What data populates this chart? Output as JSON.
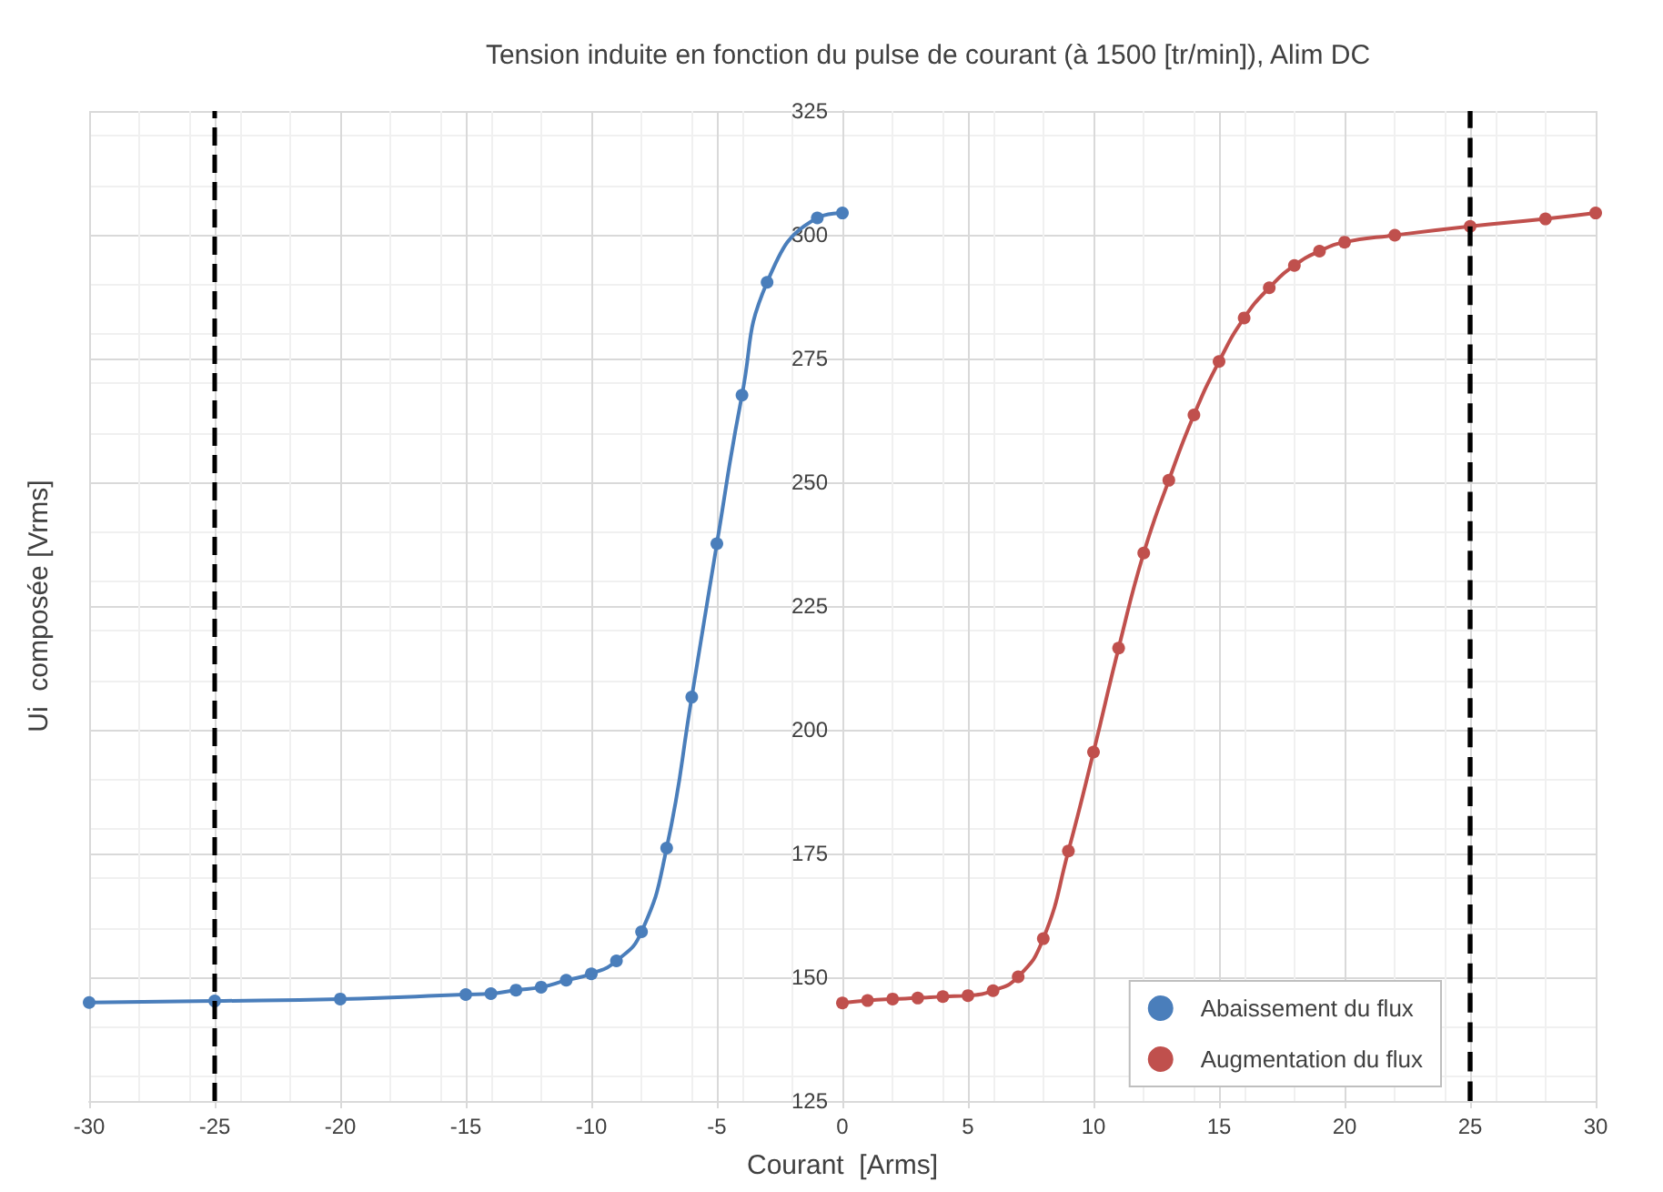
{
  "chart_data": {
    "type": "line",
    "title": "Tension induite en fonction du pulse de courant (à 1500 [tr/min]), Alim DC",
    "xlabel": "Courant  [Arms]",
    "ylabel": "Ui  composée [Vrms]",
    "xlim": [
      -30,
      30
    ],
    "xticks": [
      -30,
      -25,
      -20,
      -15,
      -10,
      -5,
      0,
      5,
      10,
      15,
      20,
      25,
      30
    ],
    "ylim": [
      125,
      325
    ],
    "yticks": [
      125,
      150,
      175,
      200,
      225,
      250,
      275,
      300,
      325
    ],
    "grid": true,
    "legend": "bottom right",
    "marker": "circle",
    "line_style": "solid",
    "series": [
      {
        "name": "Abaissement du flux",
        "color": "#4a7ebb",
        "x": [
          -30,
          -25,
          -20,
          -15,
          -14,
          -13,
          -12,
          -11,
          -10,
          -9,
          -8,
          -7,
          -6,
          -5,
          -4,
          -3,
          -1,
          0
        ],
        "values": [
          144.9,
          145.2,
          145.6,
          146.5,
          146.7,
          147.4,
          148,
          149.4,
          150.7,
          153.3,
          159.2,
          176.1,
          206.6,
          237.6,
          267.6,
          290.4,
          303.4,
          304.4
        ]
      },
      {
        "name": "Augmentation du flux",
        "color": "#c0504d",
        "x": [
          0,
          1,
          2,
          3,
          4,
          5,
          6,
          7,
          8,
          9,
          10,
          11,
          12,
          13,
          14,
          15,
          16,
          17,
          18,
          19,
          20,
          22,
          25,
          28,
          30
        ],
        "values": [
          144.8,
          145.3,
          145.6,
          145.8,
          146.1,
          146.3,
          147.3,
          150.1,
          157.8,
          175.5,
          195.5,
          216.5,
          235.7,
          250.4,
          263.6,
          274.4,
          283.2,
          289.3,
          293.8,
          296.7,
          298.5,
          299.9,
          301.7,
          303.2,
          304.4
        ]
      }
    ],
    "ref_lines": [
      {
        "axis": "x",
        "value": -25,
        "color": "#000000",
        "line_style": "dashed"
      },
      {
        "axis": "x",
        "value": 25,
        "color": "#000000",
        "line_style": "dashed"
      }
    ]
  }
}
